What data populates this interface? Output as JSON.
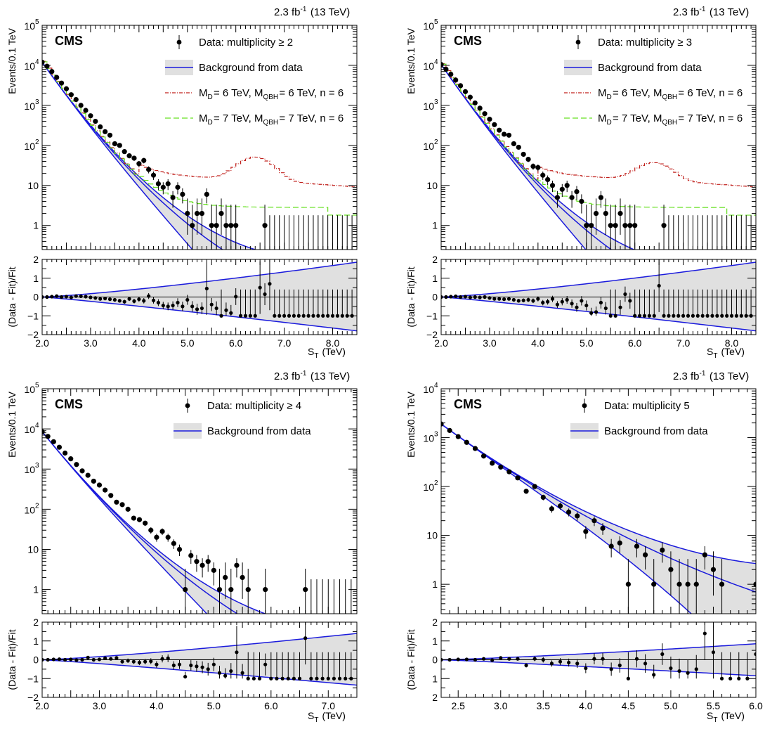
{
  "figure": {
    "header": "2.3 fb⁻¹ (13 TeV)",
    "experiment": "CMS",
    "y_label_top": "Events/0.1 TeV",
    "y_label_bottom": "(Data - Fit)/Fit",
    "x_label": "S_T (TeV)"
  },
  "colors": {
    "fit": "#1a1adc",
    "band": "#e0e0e0",
    "data": "#000000",
    "signal_6": "#c0201c",
    "signal_7": "#66e020"
  },
  "chart_data": [
    {
      "type": "scatter",
      "panel": "multiplicity >= 2",
      "header": "2.3 fb⁻¹ (13 TeV)",
      "x_range": [
        2.0,
        8.5
      ],
      "y_range_top": [
        0.25,
        100000
      ],
      "y_scale_top": "log",
      "y_range_ratio": [
        -2,
        2
      ],
      "x_ticks": [
        "2.0",
        "3.0",
        "4.0",
        "5.0",
        "6.0",
        "7.0",
        "8.0"
      ],
      "legend": [
        {
          "kind": "data",
          "label": "Data: multiplicity ≥ 2"
        },
        {
          "kind": "band",
          "label": "Background from data"
        },
        {
          "kind": "sig6",
          "label": "M_D= 6 TeV, M_QBH= 6 TeV, n = 6"
        },
        {
          "kind": "sig7",
          "label": "M_D= 7 TeV, M_QBH= 7 TeV, n = 6"
        }
      ],
      "fit": {
        "a": 12000,
        "k": 3.8,
        "c": 0.23,
        "up": 1.85,
        "lo": -1.8
      },
      "data_x": [
        2.0,
        2.1,
        2.2,
        2.3,
        2.4,
        2.5,
        2.6,
        2.7,
        2.8,
        2.9,
        3.0,
        3.1,
        3.2,
        3.3,
        3.4,
        3.5,
        3.6,
        3.7,
        3.8,
        3.9,
        4.0,
        4.1,
        4.2,
        4.3,
        4.4,
        4.5,
        4.6,
        4.7,
        4.8,
        4.9,
        5.0,
        5.1,
        5.2,
        5.3,
        5.4,
        5.5,
        5.6,
        5.7,
        5.8,
        5.9,
        6.0,
        6.6
      ],
      "data_y": [
        12000,
        9500,
        7000,
        5000,
        3600,
        2600,
        1850,
        1400,
        1000,
        750,
        550,
        400,
        290,
        220,
        180,
        110,
        100,
        70,
        55,
        48,
        35,
        42,
        25,
        18,
        11,
        9,
        11,
        5,
        9,
        6,
        2,
        1,
        2,
        2,
        6,
        1,
        1,
        2,
        1,
        1,
        1,
        1
      ],
      "ratio_x": [
        2.0,
        2.1,
        2.2,
        2.3,
        2.4,
        2.5,
        2.6,
        2.7,
        2.8,
        2.9,
        3.0,
        3.1,
        3.2,
        3.3,
        3.4,
        3.5,
        3.6,
        3.7,
        3.8,
        3.9,
        4.0,
        4.1,
        4.2,
        4.3,
        4.4,
        4.5,
        4.6,
        4.7,
        4.8,
        4.9,
        5.0,
        5.1,
        5.2,
        5.3,
        5.4,
        5.5,
        5.6,
        5.7,
        5.8,
        5.9,
        6.0,
        6.1,
        6.2,
        6.3,
        6.4,
        6.5,
        6.6,
        6.7,
        6.8,
        6.9,
        7.0,
        7.1,
        7.2,
        7.3,
        7.4,
        7.5,
        7.6,
        7.7,
        7.8,
        7.9,
        8.0,
        8.1,
        8.2,
        8.3,
        8.4
      ],
      "ratio_y": [
        0,
        0,
        0.02,
        0.05,
        0,
        0.02,
        -0.02,
        0.05,
        0.04,
        0.02,
        -0.02,
        -0.05,
        -0.1,
        -0.08,
        -0.12,
        -0.15,
        -0.2,
        -0.25,
        -0.1,
        -0.22,
        -0.12,
        -0.2,
        0.05,
        -0.18,
        -0.3,
        -0.45,
        -0.5,
        -0.45,
        -0.3,
        -0.5,
        -0.15,
        -0.5,
        -0.65,
        -0.6,
        0.45,
        -0.4,
        -0.6,
        -1,
        -0.7,
        -0.85,
        0.02,
        -1,
        -1,
        -1,
        -1,
        0.5,
        0.15,
        0.7,
        -1,
        -1,
        -1,
        -1,
        -1,
        -1,
        -1,
        -1,
        -1,
        -1,
        -1,
        -1,
        -1,
        -1,
        -1,
        -1,
        -1
      ]
    },
    {
      "type": "scatter",
      "panel": "multiplicity >= 3",
      "header": "2.3 fb⁻¹ (13 TeV)",
      "x_range": [
        2.0,
        8.5
      ],
      "y_range_top": [
        0.25,
        100000
      ],
      "y_scale_top": "log",
      "y_range_ratio": [
        -2,
        2
      ],
      "x_ticks": [
        "2.0",
        "3.0",
        "4.0",
        "5.0",
        "6.0",
        "7.0",
        "8.0"
      ],
      "legend": [
        {
          "kind": "data",
          "label": "Data: multiplicity ≥ 3"
        },
        {
          "kind": "band",
          "label": "Background from data"
        },
        {
          "kind": "sig6",
          "label": "M_D= 6 TeV, M_QBH= 6 TeV, n = 6"
        },
        {
          "kind": "sig7",
          "label": "M_D= 7 TeV, M_QBH= 7 TeV, n = 6"
        }
      ],
      "fit": {
        "a": 10500,
        "k": 3.9,
        "c": 0.22,
        "up": 1.85,
        "lo": -1.8
      },
      "data_x": [
        2.0,
        2.1,
        2.2,
        2.3,
        2.4,
        2.5,
        2.6,
        2.7,
        2.8,
        2.9,
        3.0,
        3.1,
        3.2,
        3.3,
        3.4,
        3.5,
        3.6,
        3.7,
        3.8,
        3.9,
        4.0,
        4.1,
        4.2,
        4.3,
        4.4,
        4.5,
        4.6,
        4.7,
        4.8,
        4.9,
        5.0,
        5.1,
        5.2,
        5.3,
        5.4,
        5.5,
        5.6,
        5.7,
        5.8,
        5.9,
        6.0,
        6.6
      ],
      "data_y": [
        10500,
        8000,
        6000,
        4300,
        3100,
        2200,
        1600,
        1150,
        850,
        620,
        450,
        330,
        240,
        190,
        180,
        110,
        90,
        60,
        45,
        30,
        28,
        18,
        14,
        10,
        5,
        8,
        10,
        5,
        7,
        4,
        1,
        1,
        2,
        5,
        2,
        1,
        1,
        2,
        1,
        1,
        1,
        1
      ],
      "ratio_x": [
        2.0,
        2.1,
        2.2,
        2.3,
        2.4,
        2.5,
        2.6,
        2.7,
        2.8,
        2.9,
        3.0,
        3.1,
        3.2,
        3.3,
        3.4,
        3.5,
        3.6,
        3.7,
        3.8,
        3.9,
        4.0,
        4.1,
        4.2,
        4.3,
        4.4,
        4.5,
        4.6,
        4.7,
        4.8,
        4.9,
        5.0,
        5.1,
        5.2,
        5.3,
        5.4,
        5.5,
        5.6,
        5.7,
        5.8,
        5.9,
        6.0,
        6.1,
        6.2,
        6.3,
        6.4,
        6.5,
        6.6,
        6.7,
        6.8,
        6.9,
        7.0,
        7.1,
        7.2,
        7.3,
        7.4,
        7.5,
        7.6,
        7.7,
        7.8,
        7.9,
        8.0,
        8.1,
        8.2,
        8.3,
        8.4
      ],
      "ratio_y": [
        0,
        0,
        0.02,
        0.04,
        0,
        0.02,
        -0.02,
        0,
        -0.02,
        0,
        -0.05,
        -0.1,
        -0.1,
        -0.12,
        -0.1,
        -0.15,
        -0.2,
        -0.18,
        -0.15,
        -0.2,
        -0.1,
        -0.3,
        -0.25,
        -0.1,
        -0.4,
        -0.25,
        -0.15,
        -0.35,
        -0.55,
        -0.2,
        -0.45,
        -0.85,
        -0.8,
        -0.3,
        -0.6,
        -1,
        -1,
        -0.55,
        0.15,
        -0.2,
        -1,
        -1,
        -1,
        -1,
        -1,
        0.6,
        -1,
        -1,
        -1,
        -1,
        -1,
        -1,
        -1,
        -1,
        -1,
        -1,
        -1,
        -1,
        -1,
        -1,
        -1,
        -1,
        -1,
        -1,
        -1
      ]
    },
    {
      "type": "scatter",
      "panel": "multiplicity >= 4",
      "header": "2.3 fb⁻¹ (13 TeV)",
      "x_range": [
        2.0,
        7.5
      ],
      "y_range_top": [
        0.25,
        100000
      ],
      "y_scale_top": "log",
      "y_range_ratio": [
        -2,
        2
      ],
      "x_ticks": [
        "2.0",
        "3.0",
        "4.0",
        "5.0",
        "6.0",
        "7.0"
      ],
      "legend": [
        {
          "kind": "data",
          "label": "Data: multiplicity ≥ 4"
        },
        {
          "kind": "band",
          "label": "Background from data"
        }
      ],
      "fit": {
        "a": 8500,
        "k": 3.9,
        "c": 0.2,
        "up": 1.4,
        "lo": -1.35
      },
      "data_x": [
        2.0,
        2.1,
        2.2,
        2.3,
        2.4,
        2.5,
        2.6,
        2.7,
        2.8,
        2.9,
        3.0,
        3.1,
        3.2,
        3.3,
        3.4,
        3.5,
        3.6,
        3.7,
        3.8,
        3.9,
        4.0,
        4.1,
        4.2,
        4.3,
        4.4,
        4.5,
        4.6,
        4.7,
        4.8,
        4.9,
        5.0,
        5.1,
        5.2,
        5.3,
        5.4,
        5.5,
        5.6,
        5.9,
        6.6
      ],
      "data_y": [
        8500,
        6500,
        4800,
        3500,
        2500,
        1800,
        1300,
        900,
        700,
        500,
        400,
        300,
        220,
        150,
        130,
        100,
        60,
        55,
        45,
        30,
        20,
        28,
        20,
        14,
        10,
        1,
        7,
        5,
        4,
        5,
        3,
        1,
        2,
        1,
        4,
        2,
        1,
        1,
        1
      ],
      "ratio_x": [
        2.0,
        2.1,
        2.2,
        2.3,
        2.4,
        2.5,
        2.6,
        2.7,
        2.8,
        2.9,
        3.0,
        3.1,
        3.2,
        3.3,
        3.4,
        3.5,
        3.6,
        3.7,
        3.8,
        3.9,
        4.0,
        4.1,
        4.2,
        4.3,
        4.4,
        4.5,
        4.6,
        4.7,
        4.8,
        4.9,
        5.0,
        5.1,
        5.2,
        5.3,
        5.4,
        5.5,
        5.6,
        5.7,
        5.8,
        5.9,
        6.0,
        6.1,
        6.2,
        6.3,
        6.4,
        6.5,
        6.6,
        6.7,
        6.8,
        6.9,
        7.0,
        7.1,
        7.2,
        7.3,
        7.4
      ],
      "ratio_y": [
        0,
        0,
        0.02,
        0.03,
        0,
        0.02,
        -0.02,
        0,
        0.12,
        0,
        0.02,
        0.08,
        0.05,
        0.1,
        -0.1,
        -0.05,
        -0.1,
        -0.15,
        -0.1,
        -0.08,
        -0.25,
        0.05,
        0.08,
        -0.3,
        -0.25,
        -0.9,
        -0.3,
        -0.35,
        -0.4,
        -0.5,
        -0.25,
        -0.7,
        -0.85,
        -0.6,
        0.4,
        -0.7,
        -1,
        -1,
        -1,
        -0.25,
        -1,
        -1,
        -1,
        -1,
        -1,
        -1,
        1.15,
        -1,
        -1,
        -1,
        -1,
        -1,
        -1,
        -1,
        -1
      ]
    },
    {
      "type": "scatter",
      "panel": "multiplicity 5",
      "header": "2.3 fb⁻¹ (13 TeV)",
      "x_range": [
        2.3,
        6.0
      ],
      "y_range_top": [
        0.25,
        10000
      ],
      "y_scale_top": "log",
      "y_range_ratio": [
        -2,
        2
      ],
      "x_ticks": [
        "2.5",
        "3.0",
        "3.5",
        "4.0",
        "4.5",
        "5.0",
        "5.5",
        "6.0"
      ],
      "legend": [
        {
          "kind": "data",
          "label": "Data: multiplicity    5"
        },
        {
          "kind": "band",
          "label": "Background from data"
        }
      ],
      "fit": {
        "a": 1900,
        "k": 2.8,
        "c": 0.28,
        "up": 0.85,
        "lo": -0.85
      },
      "data_x": [
        2.3,
        2.4,
        2.5,
        2.6,
        2.7,
        2.8,
        2.9,
        3.0,
        3.1,
        3.2,
        3.3,
        3.4,
        3.5,
        3.6,
        3.7,
        3.8,
        3.9,
        4.0,
        4.1,
        4.2,
        4.3,
        4.4,
        4.5,
        4.6,
        4.7,
        4.8,
        4.9,
        5.0,
        5.1,
        5.2,
        5.3,
        5.4,
        5.5,
        5.6,
        6.0
      ],
      "data_y": [
        1900,
        1400,
        1050,
        800,
        600,
        420,
        300,
        250,
        200,
        150,
        80,
        100,
        60,
        35,
        40,
        30,
        25,
        12,
        20,
        14,
        6,
        7,
        1,
        6,
        4,
        1,
        5,
        2,
        1,
        1,
        1,
        4,
        2,
        1,
        1
      ],
      "ratio_x": [
        2.3,
        2.4,
        2.5,
        2.6,
        2.7,
        2.8,
        2.9,
        3.0,
        3.1,
        3.2,
        3.3,
        3.4,
        3.5,
        3.6,
        3.7,
        3.8,
        3.9,
        4.0,
        4.1,
        4.2,
        4.3,
        4.4,
        4.5,
        4.6,
        4.7,
        4.8,
        4.9,
        5.0,
        5.1,
        5.2,
        5.3,
        5.4,
        5.5,
        5.6,
        5.7,
        5.8,
        5.9,
        6.0
      ],
      "ratio_y": [
        0,
        0,
        0.02,
        0.02,
        0,
        0.05,
        -0.02,
        0.1,
        0.05,
        0.05,
        -0.3,
        0.05,
        0,
        -0.2,
        -0.1,
        -0.15,
        -0.2,
        -0.45,
        0.05,
        0.05,
        -0.5,
        -0.3,
        -1,
        0.05,
        -0.2,
        -0.8,
        0.3,
        -0.45,
        -0.6,
        -0.7,
        -0.5,
        1.4,
        0.4,
        -1,
        -1,
        -1,
        -1,
        0.3
      ]
    }
  ]
}
